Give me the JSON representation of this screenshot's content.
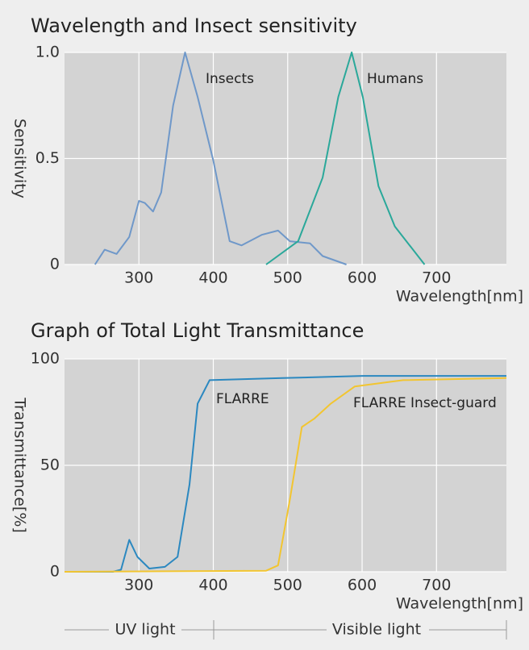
{
  "chart_data": [
    {
      "type": "line",
      "title": "Wavelength and Insect sensitivity",
      "x_label": "Wavelength[nm]",
      "y_label": "Sensitivity",
      "xlim": [
        200,
        794
      ],
      "ylim": [
        0,
        1
      ],
      "xticks": [
        300,
        400,
        500,
        600,
        700
      ],
      "yticks": [
        0,
        0.5,
        {
          "value": 1,
          "label": "1.0"
        }
      ],
      "grid": true,
      "series": [
        {
          "name": "Insects",
          "color": "#6f98c9",
          "x": [
            241,
            254,
            270,
            287,
            300,
            308,
            319,
            330,
            346,
            362,
            379,
            400,
            422,
            438,
            465,
            487,
            503,
            530,
            547,
            579
          ],
          "values": [
            0,
            0.07,
            0.05,
            0.13,
            0.3,
            0.29,
            0.25,
            0.34,
            0.75,
            1.0,
            0.79,
            0.49,
            0.11,
            0.09,
            0.14,
            0.16,
            0.11,
            0.1,
            0.04,
            0
          ]
        },
        {
          "name": "Humans",
          "color": "#2aa89a",
          "x": [
            471,
            514,
            547,
            568,
            586,
            601,
            622,
            644,
            684
          ],
          "values": [
            0,
            0.11,
            0.41,
            0.79,
            1.0,
            0.79,
            0.37,
            0.18,
            0
          ]
        }
      ]
    },
    {
      "type": "line",
      "title": "Graph of Total Light Transmittance",
      "x_label": "Wavelength[nm]",
      "y_label": "Transmittance[%]",
      "xlim": [
        200,
        794
      ],
      "ylim": [
        0,
        100
      ],
      "xticks": [
        300,
        400,
        500,
        600,
        700
      ],
      "yticks": [
        0,
        50,
        100
      ],
      "grid": true,
      "series": [
        {
          "name": "FLARRE",
          "color": "#2b88c0",
          "x": [
            200,
            265,
            276,
            287,
            298,
            314,
            335,
            352,
            368,
            379,
            395,
            493,
            601,
            794
          ],
          "values": [
            0,
            0,
            1,
            15,
            7,
            1.5,
            2.3,
            7,
            41,
            79,
            90,
            91,
            92,
            92
          ]
        },
        {
          "name": "FLARRE Insect-guard",
          "color": "#f2c530",
          "x": [
            200,
            471,
            487,
            503,
            519,
            536,
            558,
            590,
            655,
            794
          ],
          "values": [
            0,
            0.5,
            3,
            34,
            68,
            72,
            79,
            87,
            90,
            91
          ]
        }
      ]
    }
  ],
  "regions": {
    "uv": "UV light",
    "visible": "Visible light"
  }
}
